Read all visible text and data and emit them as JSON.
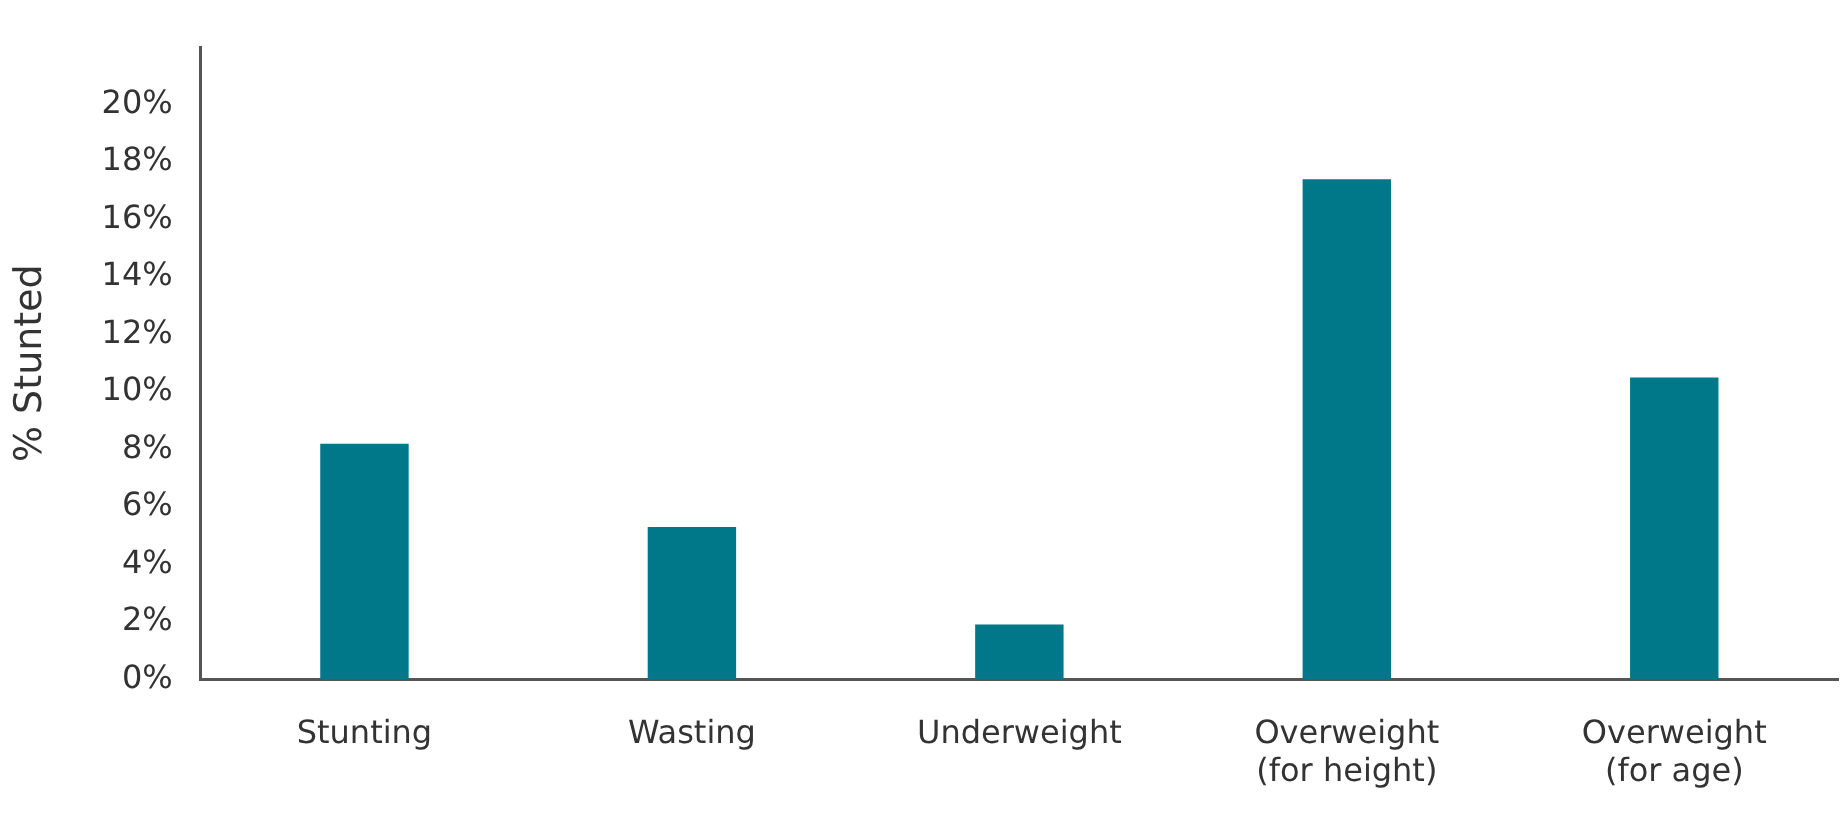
{
  "chart_data": {
    "type": "bar",
    "ylabel": "% Stunted",
    "categories": [
      "Stunting",
      "Wasting",
      "Underweight",
      "Overweight\n(for height)",
      "Overweight\n(for age)"
    ],
    "values": [
      8.2,
      5.3,
      1.9,
      17.4,
      10.5
    ],
    "color": "#017889",
    "ylim": [
      0,
      22
    ],
    "yticks": [
      {
        "value": 0,
        "label": "0%"
      },
      {
        "value": 2,
        "label": "2%"
      },
      {
        "value": 4,
        "label": "4%"
      },
      {
        "value": 6,
        "label": "6%"
      },
      {
        "value": 8,
        "label": "8%"
      },
      {
        "value": 10,
        "label": "10%"
      },
      {
        "value": 12,
        "label": "12%"
      },
      {
        "value": 14,
        "label": "14%"
      },
      {
        "value": 16,
        "label": "16%"
      },
      {
        "value": 18,
        "label": "18%"
      },
      {
        "value": 20,
        "label": "20%"
      }
    ],
    "grid": false,
    "legend": false
  }
}
